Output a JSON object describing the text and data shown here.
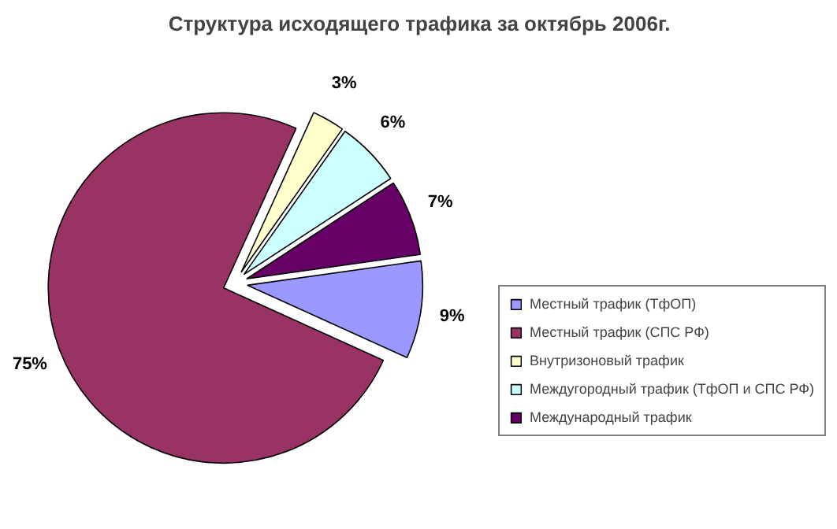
{
  "chart_data": {
    "type": "pie",
    "title": "Структура исходящего трафика за октябрь 2006г.",
    "categories": [
      "Местный трафик (ТфОП)",
      "Местный трафик (СПС РФ)",
      "Внутризоновый трафик",
      "Междугородный трафик (ТфОП и СПС РФ)",
      "Международный трафик"
    ],
    "values": [
      9,
      75,
      3,
      6,
      7
    ],
    "value_labels": [
      "9%",
      "75%",
      "3%",
      "6%",
      "7%"
    ],
    "colors": [
      "#9999ff",
      "#993366",
      "#ffffcc",
      "#ccffff",
      "#660066"
    ],
    "legend": "right"
  }
}
